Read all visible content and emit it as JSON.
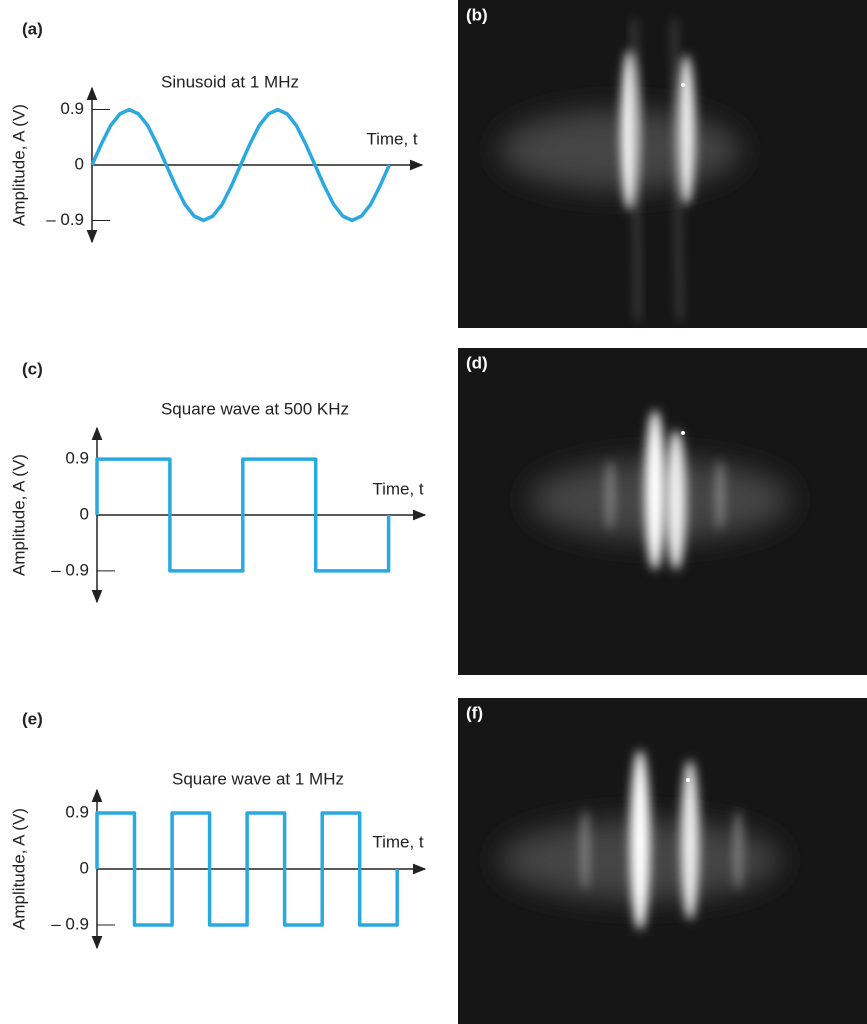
{
  "chart_data": [
    {
      "type": "line",
      "panel_label": "(a)",
      "title": "Sinusoid at 1 MHz",
      "y_label": "Amplitude, A (V)",
      "x_label": "Time, t",
      "color": "#29a9e0",
      "x": [
        0,
        0.0625,
        0.125,
        0.1875,
        0.25,
        0.3125,
        0.375,
        0.4375,
        0.5,
        0.5625,
        0.625,
        0.6875,
        0.75,
        0.8125,
        0.875,
        0.9375,
        1,
        1.0625,
        1.125,
        1.1875,
        1.25,
        1.3125,
        1.375,
        1.4375,
        1.5,
        1.5625,
        1.625,
        1.6875,
        1.75,
        1.8125,
        1.875,
        1.9375,
        2
      ],
      "values": [
        0,
        0.34,
        0.64,
        0.83,
        0.9,
        0.83,
        0.64,
        0.34,
        0,
        -0.34,
        -0.64,
        -0.83,
        -0.9,
        -0.83,
        -0.64,
        -0.34,
        0,
        0.34,
        0.64,
        0.83,
        0.9,
        0.83,
        0.64,
        0.34,
        0,
        -0.34,
        -0.64,
        -0.83,
        -0.9,
        -0.83,
        -0.64,
        -0.34,
        0
      ],
      "xlim": [
        0,
        2.22
      ],
      "ylim": [
        -1.25,
        1.25
      ],
      "yticks": [
        0.9,
        0,
        {
          "value": -0.9,
          "label": "– 0.9"
        }
      ]
    },
    {
      "type": "line",
      "panel_label": "(c)",
      "title": "Square wave at 500 KHz",
      "y_label": "Amplitude, A (V)",
      "x_label": "Time, t",
      "color": "#29a9e0",
      "x": [
        0,
        0,
        1,
        1,
        2,
        2,
        3,
        3,
        4,
        4
      ],
      "values": [
        0,
        0.9,
        0.9,
        -0.9,
        -0.9,
        0.9,
        0.9,
        -0.9,
        -0.9,
        0
      ],
      "xlim": [
        0,
        4.5
      ],
      "ylim": [
        -1.4,
        1.4
      ],
      "yticks": [
        0.9,
        0,
        {
          "value": -0.9,
          "label": "– 0.9"
        }
      ]
    },
    {
      "type": "line",
      "panel_label": "(e)",
      "title": "Square wave at 1 MHz",
      "y_label": "Amplitude, A (V)",
      "x_label": "Time, t",
      "color": "#29a9e0",
      "x": [
        0,
        0,
        0.5,
        0.5,
        1,
        1,
        1.5,
        1.5,
        2,
        2,
        2.5,
        2.5,
        3,
        3,
        3.5,
        3.5,
        4,
        4
      ],
      "values": [
        0,
        0.9,
        0.9,
        -0.9,
        -0.9,
        0.9,
        0.9,
        -0.9,
        -0.9,
        0.9,
        0.9,
        -0.9,
        -0.9,
        0.9,
        0.9,
        -0.9,
        -0.9,
        0
      ],
      "xlim": [
        0,
        4.37
      ],
      "ylim": [
        -1.27,
        1.27
      ],
      "yticks": [
        0.9,
        0,
        {
          "value": -0.9,
          "label": "– 0.9"
        }
      ]
    }
  ],
  "photos": [
    {
      "label": "(b)"
    },
    {
      "label": "(d)"
    },
    {
      "label": "(f)"
    }
  ]
}
